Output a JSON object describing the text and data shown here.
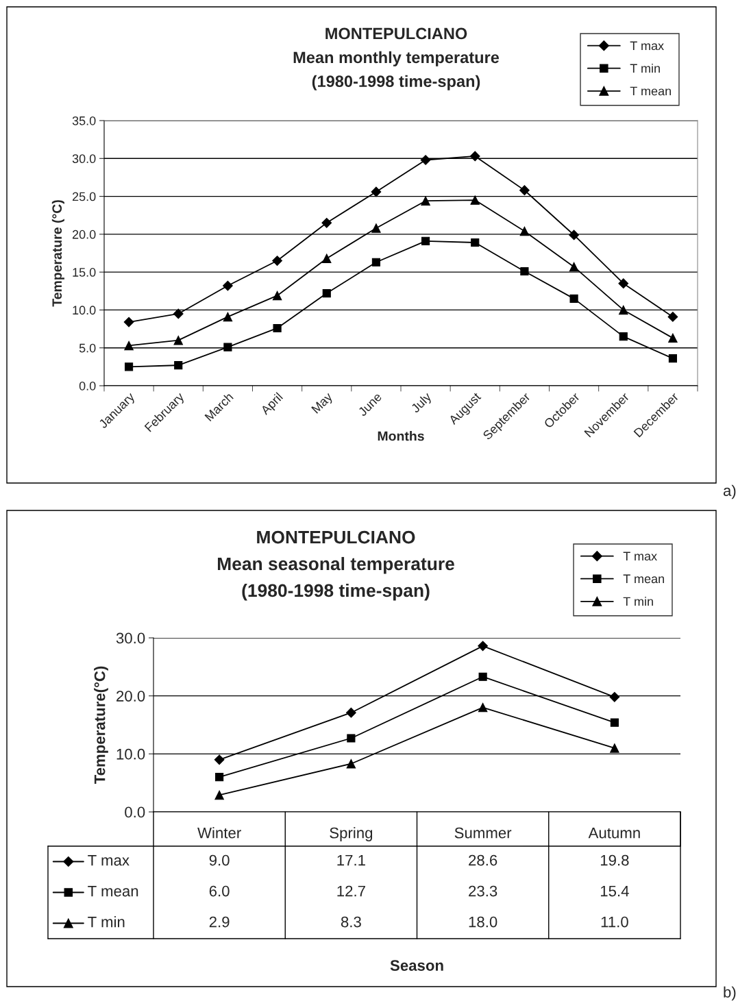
{
  "chart_data": [
    {
      "type": "line",
      "title": "MONTEPULCIANO\nMean monthly temperature\n(1980-1998 time-span)",
      "xlabel": "Months",
      "ylabel": "Temperature (°C)",
      "categories": [
        "January",
        "February",
        "March",
        "April",
        "May",
        "June",
        "July",
        "August",
        "September",
        "October",
        "November",
        "December"
      ],
      "series": [
        {
          "name": "T max",
          "color": "#000000",
          "marker": "diamond",
          "values": [
            8.4,
            9.5,
            13.2,
            16.5,
            21.5,
            25.6,
            29.8,
            30.3,
            25.8,
            19.9,
            13.5,
            9.1
          ]
        },
        {
          "name": "T min",
          "color": "#000000",
          "marker": "square",
          "values": [
            2.5,
            2.7,
            5.1,
            7.6,
            12.2,
            16.3,
            19.1,
            18.9,
            15.1,
            11.5,
            6.5,
            3.6
          ]
        },
        {
          "name": "T mean",
          "color": "#000000",
          "marker": "triangle",
          "values": [
            5.3,
            6.0,
            9.1,
            11.9,
            16.8,
            20.8,
            24.4,
            24.5,
            20.4,
            15.7,
            10.0,
            6.3
          ]
        }
      ],
      "ylim": [
        0,
        35
      ],
      "yticks": [
        {
          "value": 0,
          "label": "0.0"
        },
        {
          "value": 5,
          "label": "5.0"
        },
        {
          "value": 10,
          "label": "10.0"
        },
        {
          "value": 15,
          "label": "15.0"
        },
        {
          "value": 20,
          "label": "20.0"
        },
        {
          "value": 25,
          "label": "25.0"
        },
        {
          "value": 30,
          "label": "30.0"
        },
        {
          "value": 35,
          "label": "35.0"
        }
      ],
      "grid": "y",
      "legend": "top right",
      "line_style": "solid",
      "annotations": [
        "a)"
      ]
    },
    {
      "type": "line",
      "title": "MONTEPULCIANO\nMean seasonal temperature\n(1980-1998 time-span)",
      "xlabel": "Season",
      "ylabel": "Temperature(°C)",
      "categories": [
        "Winter",
        "Spring",
        "Summer",
        "Autumn"
      ],
      "series": [
        {
          "name": "T max",
          "color": "#000000",
          "marker": "diamond",
          "values": [
            9.0,
            17.1,
            28.6,
            19.8
          ],
          "value_labels": [
            "9.0",
            "17.1",
            "28.6",
            "19.8"
          ]
        },
        {
          "name": "T mean",
          "color": "#000000",
          "marker": "square",
          "values": [
            6.0,
            12.7,
            23.3,
            15.4
          ],
          "value_labels": [
            "6.0",
            "12.7",
            "23.3",
            "15.4"
          ]
        },
        {
          "name": "T min",
          "color": "#000000",
          "marker": "triangle",
          "values": [
            2.9,
            8.3,
            18.0,
            11.0
          ],
          "value_labels": [
            "2.9",
            "8.3",
            "18.0",
            "11.0"
          ]
        }
      ],
      "ylim": [
        0,
        30
      ],
      "yticks": [
        {
          "value": 0,
          "label": "0.0"
        },
        {
          "value": 10,
          "label": "10.0"
        },
        {
          "value": 20,
          "label": "20.0"
        },
        {
          "value": 30,
          "label": "30.0"
        }
      ],
      "grid": "y",
      "legend": "top right",
      "line_style": "solid",
      "annotations": [
        "b)"
      ]
    }
  ]
}
